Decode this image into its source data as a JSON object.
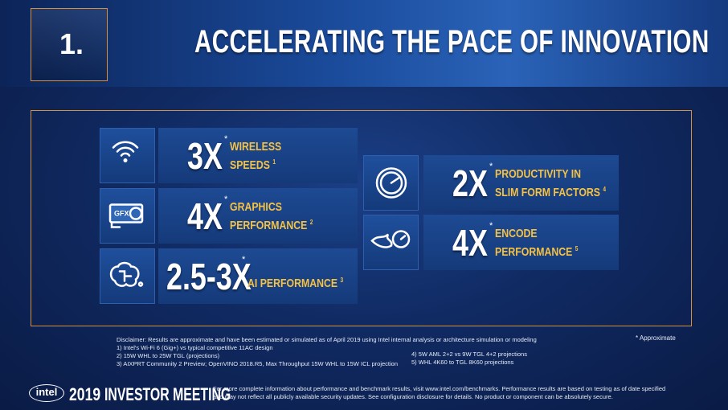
{
  "header": {
    "section": "1.",
    "title": "ACCELERATING THE PACE OF INNOVATION"
  },
  "cards": [
    {
      "value": "3X",
      "star": "*",
      "label": [
        "WIRELESS",
        "SPEEDS"
      ],
      "note": "1"
    },
    {
      "value": "4X",
      "star": "*",
      "label": [
        "GRAPHICS",
        "PERFORMANCE"
      ],
      "note": "2",
      "icon_label": "GFX"
    },
    {
      "value": "2.5-3X",
      "star": "*",
      "label": [
        "AI PERFORMANCE"
      ],
      "note": "3"
    },
    {
      "value": "2X",
      "star": "*",
      "label": [
        "PRODUCTIVITY IN",
        "SLIM FORM FACTORS"
      ],
      "note": "4"
    },
    {
      "value": "4X",
      "star": "*",
      "label": [
        "ENCODE",
        "PERFORMANCE"
      ],
      "note": "5"
    }
  ],
  "approximate": "* Approximate",
  "disclaimer": [
    "Disclaimer: Results are approximate and have been estimated or simulated as of April 2019 using Intel internal analysis or architecture simulation or modeling",
    "1) Intel's Wi-Fi 6 (Gig+) vs typical competitive 11AC design",
    "2) 15W WHL to 25W TGL (projections)",
    "3) AIXPRT Community 2 Preview; OpenVINO 2018.R5, Max Throughput 15W WHL to 15W ICL projection"
  ],
  "disclaimer_right": [
    "4) 5W AML 2+2 vs 9W TGL 4+2 projections",
    "5) WHL 4K60 to TGL 8K60 projections"
  ],
  "footer": {
    "logo": "intel",
    "year": "2019",
    "event": "INVESTOR MEETING",
    "text": [
      "For more complete information about performance and benchmark results, visit www.intel.com/benchmarks. Performance results are based on testing as of date specified",
      "and may not reflect all publicly available security updates.  See configuration disclosure for details. No product or component can be absolutely secure."
    ]
  }
}
